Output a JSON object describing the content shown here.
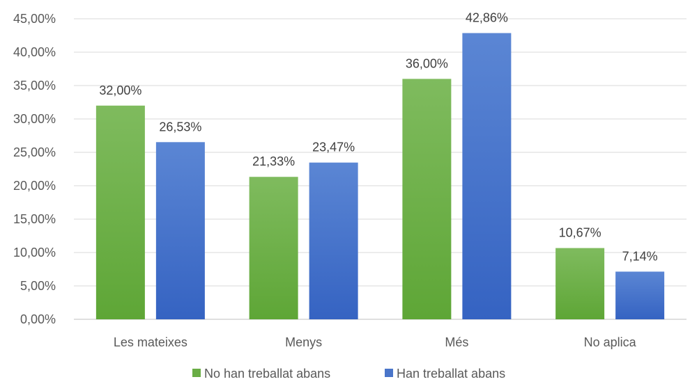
{
  "chart_data": {
    "type": "bar",
    "categories": [
      "Les mateixes",
      "Menys",
      "Més",
      "No aplica"
    ],
    "series": [
      {
        "name": "No han treballat abans",
        "values": [
          32.0,
          21.33,
          36.0,
          10.67
        ],
        "labels": [
          "32,00%",
          "21,33%",
          "36,00%",
          "10,67%"
        ],
        "color": "#6aad45"
      },
      {
        "name": "Han treballat abans",
        "values": [
          26.53,
          23.47,
          42.86,
          7.14
        ],
        "labels": [
          "26,53%",
          "23,47%",
          "42,86%",
          "7,14%"
        ],
        "color": "#4a75c9"
      }
    ],
    "yticks": [
      "0,00%",
      "5,00%",
      "10,00%",
      "15,00%",
      "20,00%",
      "25,00%",
      "30,00%",
      "35,00%",
      "40,00%",
      "45,00%"
    ],
    "ylim": [
      0,
      45
    ],
    "grid": true,
    "legend_position": "bottom",
    "title": "",
    "xlabel": "",
    "ylabel": ""
  }
}
